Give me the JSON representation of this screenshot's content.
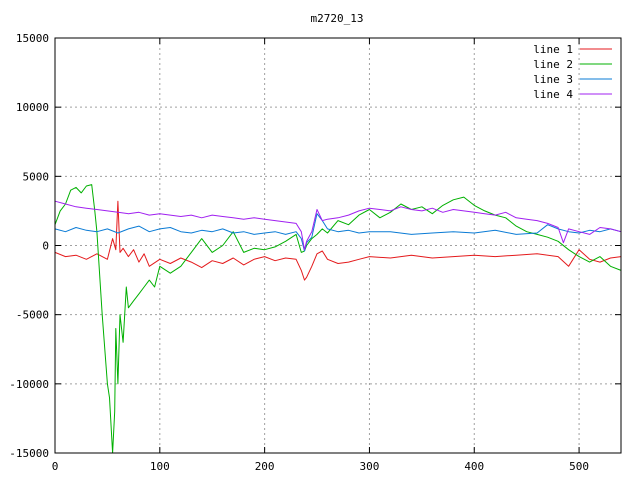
{
  "chart_data": {
    "type": "line",
    "title": "m2720_13",
    "xlabel": "",
    "ylabel": "",
    "xlim": [
      0,
      540
    ],
    "ylim": [
      -15000,
      15000
    ],
    "xticks": [
      0,
      100,
      200,
      300,
      400,
      500
    ],
    "yticks": [
      -15000,
      -10000,
      -5000,
      0,
      5000,
      10000,
      15000
    ],
    "xtick_labels": [
      "0",
      "100",
      "200",
      "300",
      "400",
      "500"
    ],
    "ytick_labels": [
      "-15000",
      "-10000",
      "-5000",
      "0",
      "5000",
      "10000",
      "15000"
    ],
    "grid": true,
    "legend_position": "top-right",
    "series": [
      {
        "name": "line 1",
        "color": "#e41a1c",
        "x": [
          0,
          10,
          20,
          30,
          40,
          50,
          55,
          58,
          60,
          62,
          65,
          70,
          75,
          80,
          85,
          90,
          100,
          110,
          120,
          130,
          140,
          150,
          160,
          170,
          180,
          190,
          200,
          210,
          220,
          230,
          235,
          238,
          240,
          245,
          250,
          255,
          260,
          270,
          280,
          290,
          300,
          320,
          340,
          360,
          380,
          400,
          420,
          440,
          460,
          480,
          490,
          500,
          510,
          520,
          530,
          540
        ],
        "y": [
          -500,
          -800,
          -700,
          -1000,
          -600,
          -1000,
          500,
          -300,
          3200,
          -500,
          -200,
          -800,
          -300,
          -1200,
          -600,
          -1500,
          -1000,
          -1300,
          -900,
          -1200,
          -1600,
          -1100,
          -1300,
          -900,
          -1400,
          -1000,
          -800,
          -1100,
          -900,
          -1000,
          -1800,
          -2500,
          -2300,
          -1500,
          -600,
          -400,
          -1000,
          -1300,
          -1200,
          -1000,
          -800,
          -900,
          -700,
          -900,
          -800,
          -700,
          -800,
          -700,
          -600,
          -800,
          -1500,
          -300,
          -1000,
          -1200,
          -900,
          -800
        ]
      },
      {
        "name": "line 2",
        "color": "#00b000",
        "x": [
          0,
          5,
          10,
          15,
          20,
          25,
          30,
          35,
          38,
          40,
          45,
          50,
          52,
          55,
          57,
          58,
          60,
          62,
          65,
          68,
          70,
          75,
          80,
          85,
          90,
          95,
          100,
          110,
          120,
          130,
          140,
          150,
          160,
          170,
          180,
          190,
          200,
          210,
          220,
          230,
          235,
          238,
          240,
          245,
          250,
          255,
          260,
          270,
          280,
          290,
          300,
          310,
          320,
          330,
          340,
          350,
          360,
          370,
          380,
          390,
          400,
          410,
          420,
          430,
          440,
          450,
          460,
          470,
          480,
          490,
          500,
          510,
          520,
          530,
          540
        ],
        "y": [
          1500,
          2500,
          3000,
          4000,
          4200,
          3800,
          4300,
          4400,
          2500,
          1000,
          -5000,
          -10000,
          -11000,
          -15000,
          -12000,
          -6000,
          -10000,
          -5000,
          -7000,
          -3000,
          -4500,
          -4000,
          -3500,
          -3000,
          -2500,
          -3000,
          -1500,
          -2000,
          -1500,
          -500,
          500,
          -500,
          0,
          1000,
          -500,
          -200,
          -300,
          -100,
          300,
          800,
          -500,
          -400,
          0,
          500,
          800,
          1200,
          900,
          1800,
          1500,
          2200,
          2600,
          2000,
          2400,
          3000,
          2600,
          2800,
          2300,
          2900,
          3300,
          3500,
          2900,
          2500,
          2200,
          2000,
          1400,
          1000,
          800,
          600,
          300,
          -300,
          -800,
          -1200,
          -800,
          -1500,
          -1800
        ]
      },
      {
        "name": "line 3",
        "color": "#0a7bd5",
        "x": [
          0,
          10,
          20,
          30,
          40,
          50,
          60,
          70,
          80,
          90,
          100,
          110,
          120,
          130,
          140,
          150,
          160,
          170,
          180,
          190,
          200,
          210,
          220,
          230,
          235,
          238,
          240,
          245,
          250,
          255,
          260,
          270,
          280,
          290,
          300,
          320,
          340,
          360,
          380,
          400,
          420,
          440,
          460,
          470,
          480,
          490,
          500,
          510,
          520,
          530,
          540
        ],
        "y": [
          1200,
          1000,
          1300,
          1100,
          1000,
          1200,
          900,
          1200,
          1400,
          1000,
          1200,
          1300,
          1000,
          900,
          1100,
          1000,
          1200,
          900,
          1000,
          800,
          900,
          1000,
          800,
          1000,
          500,
          -400,
          200,
          600,
          2300,
          1800,
          1200,
          1000,
          1100,
          900,
          1000,
          1000,
          800,
          900,
          1000,
          900,
          1100,
          800,
          900,
          1500,
          1200,
          1000,
          900,
          1100,
          1000,
          1200,
          1000
        ]
      },
      {
        "name": "line 4",
        "color": "#a020f0",
        "x": [
          0,
          10,
          20,
          30,
          40,
          50,
          60,
          70,
          80,
          90,
          100,
          110,
          120,
          130,
          140,
          150,
          160,
          170,
          180,
          190,
          200,
          210,
          220,
          230,
          235,
          238,
          240,
          245,
          250,
          255,
          260,
          270,
          280,
          290,
          300,
          310,
          320,
          330,
          340,
          350,
          360,
          370,
          380,
          390,
          400,
          410,
          420,
          430,
          440,
          450,
          460,
          470,
          480,
          485,
          490,
          500,
          510,
          520,
          530,
          540
        ],
        "y": [
          3200,
          3000,
          2800,
          2700,
          2600,
          2500,
          2400,
          2300,
          2400,
          2200,
          2300,
          2200,
          2100,
          2200,
          2000,
          2200,
          2100,
          2000,
          1900,
          2000,
          1900,
          1800,
          1700,
          1600,
          1000,
          -300,
          300,
          1000,
          2600,
          1800,
          1900,
          2000,
          2200,
          2500,
          2700,
          2600,
          2500,
          2800,
          2600,
          2500,
          2700,
          2400,
          2600,
          2500,
          2400,
          2300,
          2200,
          2400,
          2000,
          1900,
          1800,
          1600,
          1300,
          200,
          1200,
          1000,
          800,
          1300,
          1200,
          1000
        ]
      }
    ]
  }
}
